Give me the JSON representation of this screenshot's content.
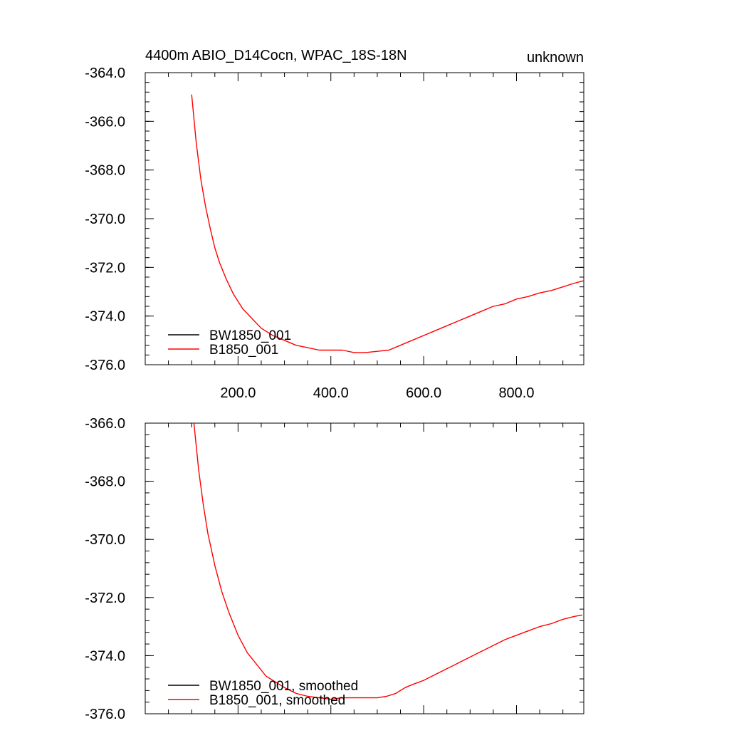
{
  "header": {
    "title": "4400m ABIO_D14Cocn, WPAC_18S-18N",
    "right_label": "unknown"
  },
  "colors": {
    "series_bw": "#000000",
    "series_b": "#ff0000",
    "axis": "#000000",
    "background": "#ffffff"
  },
  "chart_data": [
    {
      "type": "line",
      "title": "4400m ABIO_D14Cocn, WPAC_18S-18N",
      "xlabel": "",
      "ylabel": "",
      "xlim": [
        0,
        945
      ],
      "ylim": [
        -376.0,
        -364.0
      ],
      "x_ticks": [
        200,
        400,
        600,
        800
      ],
      "x_tick_labels": [
        "200.0",
        "400.0",
        "600.0",
        "800.0"
      ],
      "y_ticks": [
        -364,
        -366,
        -368,
        -370,
        -372,
        -374,
        -376
      ],
      "y_tick_labels": [
        "-364.0",
        "-366.0",
        "-368.0",
        "-370.0",
        "-372.0",
        "-374.0",
        "-376.0"
      ],
      "grid": false,
      "legend_placement": "bottom-left",
      "series": [
        {
          "name": "BW1850_001",
          "x": [],
          "y": []
        },
        {
          "name": "B1850_001",
          "x": [
            100,
            110,
            120,
            130,
            140,
            150,
            160,
            175,
            190,
            210,
            230,
            250,
            275,
            300,
            325,
            350,
            375,
            400,
            425,
            450,
            475,
            500,
            525,
            550,
            575,
            600,
            625,
            650,
            675,
            700,
            725,
            750,
            775,
            800,
            825,
            850,
            875,
            900,
            925,
            945
          ],
          "y": [
            -364.9,
            -366.9,
            -368.4,
            -369.5,
            -370.4,
            -371.2,
            -371.8,
            -372.5,
            -373.1,
            -373.7,
            -374.1,
            -374.5,
            -374.8,
            -375.0,
            -375.2,
            -375.3,
            -375.4,
            -375.4,
            -375.4,
            -375.5,
            -375.5,
            -375.45,
            -375.4,
            -375.2,
            -375.0,
            -374.8,
            -374.6,
            -374.4,
            -374.2,
            -374.0,
            -373.8,
            -373.6,
            -373.5,
            -373.3,
            -373.2,
            -373.05,
            -372.95,
            -372.8,
            -372.65,
            -372.55
          ]
        }
      ]
    },
    {
      "type": "line",
      "title": "",
      "xlabel": "",
      "ylabel": "",
      "xlim": [
        0,
        945
      ],
      "ylim": [
        -376.0,
        -366.0
      ],
      "x_ticks": [
        200,
        400,
        600,
        800
      ],
      "x_tick_labels": [],
      "y_ticks": [
        -366,
        -368,
        -370,
        -372,
        -374,
        -376
      ],
      "y_tick_labels": [
        "-366.0",
        "-368.0",
        "-370.0",
        "-372.0",
        "-374.0",
        "-376.0"
      ],
      "grid": false,
      "legend_placement": "bottom-left",
      "series": [
        {
          "name": "BW1850_001, smoothed",
          "x": [],
          "y": []
        },
        {
          "name": "B1850_001, smoothed",
          "x": [
            105,
            115,
            125,
            135,
            150,
            165,
            180,
            200,
            220,
            240,
            260,
            280,
            300,
            325,
            350,
            375,
            400,
            425,
            450,
            475,
            500,
            520,
            540,
            560,
            575,
            600,
            625,
            650,
            675,
            700,
            725,
            750,
            775,
            800,
            825,
            850,
            875,
            900,
            925,
            942
          ],
          "y": [
            -366.0,
            -367.6,
            -368.8,
            -369.8,
            -370.9,
            -371.8,
            -372.5,
            -373.3,
            -373.9,
            -374.3,
            -374.7,
            -374.9,
            -375.1,
            -375.3,
            -375.4,
            -375.45,
            -375.5,
            -375.45,
            -375.45,
            -375.45,
            -375.45,
            -375.4,
            -375.3,
            -375.1,
            -375.0,
            -374.85,
            -374.65,
            -374.45,
            -374.25,
            -374.05,
            -373.85,
            -373.65,
            -373.45,
            -373.3,
            -373.15,
            -373.0,
            -372.9,
            -372.75,
            -372.65,
            -372.6
          ]
        }
      ]
    }
  ]
}
